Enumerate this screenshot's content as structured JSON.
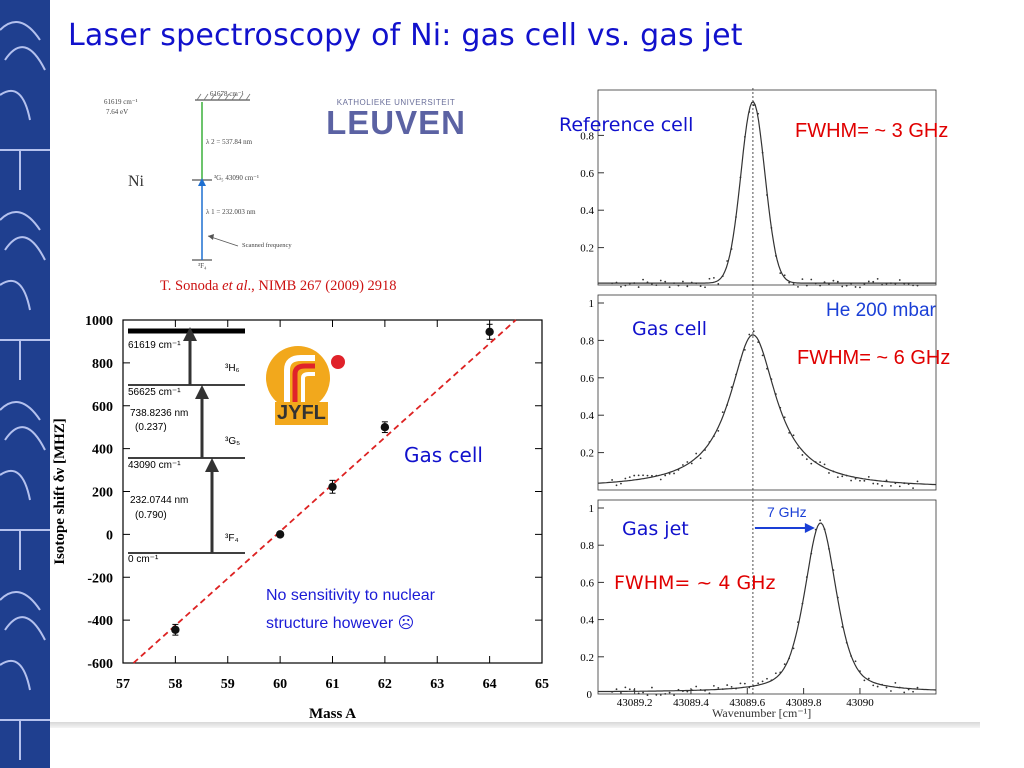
{
  "slide": {
    "title": "Laser spectroscopy of Ni: gas cell vs. gas jet"
  },
  "logos": {
    "leuven_top": "KATHOLIEKE UNIVERSITEIT",
    "leuven_main": "LEUVEN",
    "jyfl": "JYFL"
  },
  "level_diagram_small": {
    "element": "Ni",
    "left_top_1": "61619 cm⁻¹",
    "left_top_2": "7.64 eV",
    "top_level": "61678 cm⁻¹",
    "lambda2": "λ 2 = 537.84 nm",
    "mid_level": "³G₅  43090 cm⁻¹",
    "lambda1": "λ 1 = 232.003 nm",
    "scanned": "Scanned frequency",
    "ground": "³F₄"
  },
  "citation": {
    "author": "T. Sonoda",
    "etal": "et al",
    "rest": "., NIMB 267 (2009) 2918"
  },
  "isotope_plot": {
    "ylabel": "Isotope shift δν [MHZ]",
    "xlabel": "Mass A",
    "gas_cell_label": "Gas cell",
    "note_line1": "No sensitivity to nuclear",
    "note_line2": "structure however ☹",
    "levels": {
      "l1": "61619 cm⁻¹",
      "l2_name": "³H₆",
      "l3": "56625 cm⁻¹",
      "trans1_a": "738.8236 nm",
      "trans1_b": "(0.237)",
      "l3_name": "³G₅",
      "l4": "43090 cm⁻¹",
      "trans2_a": "232.0744 nm",
      "trans2_b": "(0.790)",
      "l5_name": "³F₄",
      "l5": "0 cm⁻¹"
    }
  },
  "spectra": {
    "reference_label": "Reference cell",
    "reference_fwhm": "FWHM= ~ 3 GHz",
    "gascell_label": "Gas cell",
    "gascell_pressure": "He 200 mbar",
    "gascell_fwhm": "FWHM= ~ 6 GHz",
    "gasjet_label": "Gas jet",
    "gasjet_shift": "7 GHz",
    "gasjet_fwhm": "FWHM= ~ 4 GHz",
    "xlabel": "Wavenumber [cm⁻¹]"
  },
  "chart_data": [
    {
      "type": "scatter",
      "title": "",
      "xlabel": "Mass A",
      "ylabel": "Isotope shift δν [MHZ]",
      "xlim": [
        57,
        65
      ],
      "ylim": [
        -600,
        1000
      ],
      "x_ticks": [
        57,
        58,
        59,
        60,
        61,
        62,
        63,
        64,
        65
      ],
      "y_ticks": [
        -600,
        -400,
        -200,
        0,
        200,
        400,
        600,
        800,
        1000
      ],
      "series": [
        {
          "name": "Gas cell",
          "x": [
            58,
            60,
            61,
            62,
            64
          ],
          "values": [
            -445,
            0,
            222,
            500,
            945
          ],
          "errors": [
            25,
            10,
            30,
            25,
            35
          ]
        }
      ],
      "fit_line": {
        "x": [
          57.2,
          64.5
        ],
        "values": [
          -600,
          1000
        ]
      }
    },
    {
      "type": "line",
      "title": "Reference cell",
      "ylim": [
        0,
        1
      ],
      "y_ticks": [
        0.2,
        0.4,
        0.6,
        0.8
      ],
      "xlim": [
        43089.07,
        43090.27
      ],
      "series": [
        {
          "name": "Reference cell",
          "center": 43089.62,
          "fwhm_cm": 0.1,
          "peak": 0.97
        }
      ]
    },
    {
      "type": "line",
      "title": "Gas cell",
      "ylim": [
        0,
        1
      ],
      "y_ticks": [
        0.2,
        0.4,
        0.6,
        0.8,
        1
      ],
      "xlim": [
        43089.07,
        43090.27
      ],
      "series": [
        {
          "name": "Gas cell",
          "center": 43089.62,
          "fwhm_cm": 0.2,
          "peak": 0.82
        }
      ]
    },
    {
      "type": "line",
      "title": "Gas jet",
      "ylim": [
        0,
        1
      ],
      "y_ticks": [
        0.2,
        0.4,
        0.6,
        0.8,
        1
      ],
      "xlim": [
        43089.07,
        43090.27
      ],
      "x_ticks": [
        43089.2,
        43089.4,
        43089.6,
        43089.8,
        43090
      ],
      "x_tick_labels": [
        "43089.2",
        "43089.4",
        "43089.6",
        "43089.8",
        "43090"
      ],
      "series": [
        {
          "name": "Gas jet",
          "center": 43089.86,
          "fwhm_cm": 0.133,
          "peak": 0.91
        }
      ]
    }
  ]
}
